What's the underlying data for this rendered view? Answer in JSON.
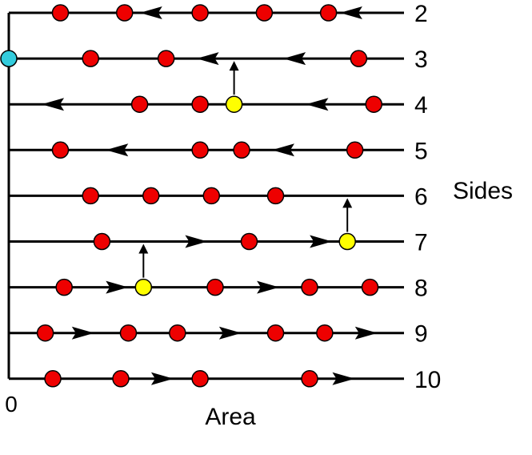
{
  "labels": {
    "origin": "0",
    "x_axis": "Area",
    "y_axis": "Sides"
  },
  "colors": {
    "line": "#000000",
    "red_dot": "#ee0000",
    "yellow_dot": "#ffff00",
    "cyan_dot": "#33ccdd"
  },
  "levels": [
    {
      "sides": "2",
      "flow": "left",
      "dots": [
        {
          "color": "red",
          "pos": 0.09
        },
        {
          "color": "red",
          "pos": 0.26
        },
        {
          "color": "red",
          "pos": 0.46
        },
        {
          "color": "red",
          "pos": 0.63
        },
        {
          "color": "red",
          "pos": 0.8
        }
      ],
      "arrows": [
        {
          "pos": 0.33
        },
        {
          "pos": 0.86
        }
      ]
    },
    {
      "sides": "3",
      "flow": "left",
      "dots": [
        {
          "color": "red",
          "pos": 0.17
        },
        {
          "color": "red",
          "pos": 0.37
        },
        {
          "color": "red",
          "pos": 0.88
        }
      ],
      "arrows": [
        {
          "pos": 0.48
        },
        {
          "pos": 0.71
        }
      ]
    },
    {
      "sides": "4",
      "flow": "left",
      "dots": [
        {
          "color": "red",
          "pos": 0.3
        },
        {
          "color": "red",
          "pos": 0.46
        },
        {
          "color": "yellow",
          "pos": 0.55
        },
        {
          "color": "red",
          "pos": 0.92
        }
      ],
      "arrows": [
        {
          "pos": 0.07
        },
        {
          "pos": 0.77
        }
      ]
    },
    {
      "sides": "5",
      "flow": "left",
      "dots": [
        {
          "color": "red",
          "pos": 0.09
        },
        {
          "color": "red",
          "pos": 0.46
        },
        {
          "color": "red",
          "pos": 0.57
        },
        {
          "color": "red",
          "pos": 0.87
        }
      ],
      "arrows": [
        {
          "pos": 0.24
        },
        {
          "pos": 0.68
        }
      ]
    },
    {
      "sides": "6",
      "flow": "none",
      "dots": [
        {
          "color": "red",
          "pos": 0.17
        },
        {
          "color": "red",
          "pos": 0.33
        },
        {
          "color": "red",
          "pos": 0.49
        },
        {
          "color": "red",
          "pos": 0.66
        }
      ],
      "arrows": []
    },
    {
      "sides": "7",
      "flow": "right",
      "dots": [
        {
          "color": "red",
          "pos": 0.2
        },
        {
          "color": "red",
          "pos": 0.59
        },
        {
          "color": "yellow",
          "pos": 0.85
        }
      ],
      "arrows": [
        {
          "pos": 0.45
        },
        {
          "pos": 0.78
        }
      ]
    },
    {
      "sides": "8",
      "flow": "right",
      "dots": [
        {
          "color": "red",
          "pos": 0.1
        },
        {
          "color": "yellow",
          "pos": 0.31
        },
        {
          "color": "red",
          "pos": 0.5
        },
        {
          "color": "red",
          "pos": 0.75
        },
        {
          "color": "red",
          "pos": 0.91
        }
      ],
      "arrows": [
        {
          "pos": 0.24
        },
        {
          "pos": 0.64
        }
      ]
    },
    {
      "sides": "9",
      "flow": "right",
      "dots": [
        {
          "color": "red",
          "pos": 0.05
        },
        {
          "color": "red",
          "pos": 0.27
        },
        {
          "color": "red",
          "pos": 0.4
        },
        {
          "color": "red",
          "pos": 0.66
        },
        {
          "color": "red",
          "pos": 0.79
        }
      ],
      "arrows": [
        {
          "pos": 0.15
        },
        {
          "pos": 0.54
        },
        {
          "pos": 0.9
        }
      ]
    },
    {
      "sides": "10",
      "flow": "right",
      "dots": [
        {
          "color": "red",
          "pos": 0.07
        },
        {
          "color": "red",
          "pos": 0.25
        },
        {
          "color": "red",
          "pos": 0.46
        },
        {
          "color": "red",
          "pos": 0.75
        }
      ],
      "arrows": [
        {
          "pos": 0.36
        },
        {
          "pos": 0.84
        }
      ]
    }
  ],
  "transitions": [
    {
      "from_sides": "4",
      "to_sides": "3",
      "dot_index": 2
    },
    {
      "from_sides": "7",
      "to_sides": "6",
      "dot_index": 2
    },
    {
      "from_sides": "8",
      "to_sides": "7",
      "dot_index": 1
    }
  ],
  "cyan_dot_on": "3"
}
